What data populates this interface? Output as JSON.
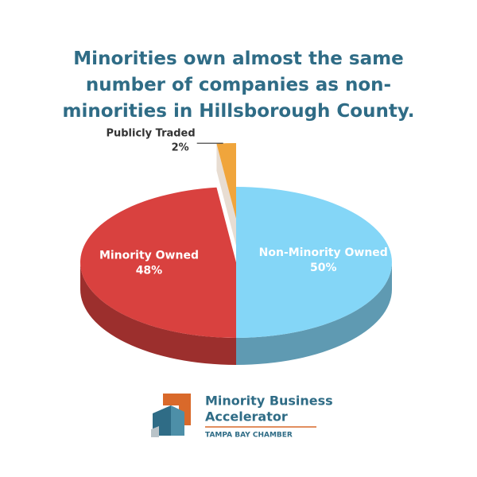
{
  "chart_data": {
    "type": "pie",
    "title": "Minorities own almost the same number of companies as non-minorities in Hillsborough County.",
    "categories": [
      "Non-Minority Owned",
      "Minority Owned",
      "Publicly Traded"
    ],
    "values": [
      50,
      48,
      2
    ],
    "value_labels": [
      "50%",
      "48%",
      "2%"
    ],
    "colors": [
      "#84d6f7",
      "#d9413f",
      "#f0a53c"
    ]
  },
  "logo": {
    "line1": "Minority Business",
    "line2": "Accelerator",
    "tagline": "TAMPA BAY CHAMBER"
  }
}
